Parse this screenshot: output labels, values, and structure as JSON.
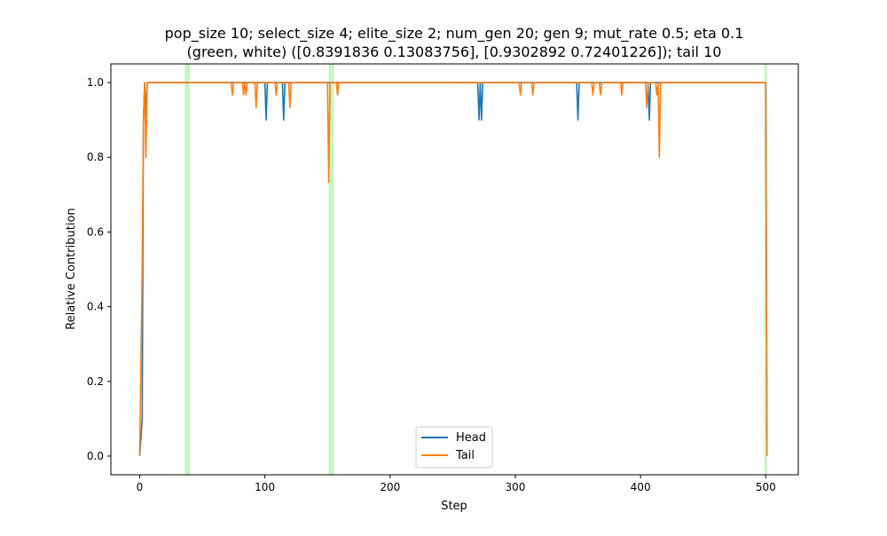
{
  "chart_data": {
    "type": "line",
    "title": "pop_size 10; select_size 4; elite_size 2; num_gen 20; gen 9; mut_rate 0.5; eta 0.1",
    "subtitle": "(green, white) ([0.8391836  0.13083756], [0.9302892  0.72401226]); tail 10",
    "xlabel": "Step",
    "ylabel": "Relative Contribution",
    "xlim": [
      -23,
      526
    ],
    "ylim": [
      -0.05,
      1.05
    ],
    "xticks": [
      0,
      100,
      200,
      300,
      400,
      500
    ],
    "yticks": [
      0.0,
      0.2,
      0.4,
      0.6,
      0.8,
      1.0
    ],
    "xtick_labels": [
      "0",
      "100",
      "200",
      "300",
      "400",
      "500"
    ],
    "ytick_labels": [
      "0.0",
      "0.2",
      "0.4",
      "0.6",
      "0.8",
      "1.0"
    ],
    "grid": false,
    "legend_position": "lower-center",
    "highlight_spans": [
      [
        36,
        40
      ],
      [
        151,
        155
      ],
      [
        499,
        501
      ]
    ],
    "highlight_color": "#90ee90",
    "series": [
      {
        "name": "Head",
        "color": "#1f77b4",
        "baseline": 1.0,
        "x_end": 501,
        "points": [
          [
            0,
            0.0
          ],
          [
            2,
            0.1
          ],
          [
            3,
            0.9
          ],
          [
            4,
            1.0
          ],
          [
            5,
            0.9
          ],
          [
            6,
            1.0
          ],
          [
            100,
            1.0
          ],
          [
            101,
            0.9
          ],
          [
            102,
            1.0
          ],
          [
            114,
            1.0
          ],
          [
            115,
            0.9
          ],
          [
            116,
            1.0
          ],
          [
            270,
            1.0
          ],
          [
            271,
            0.9
          ],
          [
            272,
            1.0
          ],
          [
            273,
            0.9
          ],
          [
            274,
            1.0
          ],
          [
            349,
            1.0
          ],
          [
            350,
            0.9
          ],
          [
            351,
            1.0
          ],
          [
            406,
            1.0
          ],
          [
            407,
            0.9
          ],
          [
            408,
            1.0
          ],
          [
            500,
            1.0
          ],
          [
            501,
            0.0
          ]
        ]
      },
      {
        "name": "Tail",
        "color": "#ff7f0e",
        "baseline": 1.0,
        "x_end": 501,
        "points": [
          [
            0,
            0.0
          ],
          [
            2,
            0.5
          ],
          [
            3,
            0.9
          ],
          [
            4,
            1.0
          ],
          [
            5,
            0.8
          ],
          [
            6,
            1.0
          ],
          [
            73,
            1.0
          ],
          [
            74,
            0.967
          ],
          [
            75,
            1.0
          ],
          [
            82,
            1.0
          ],
          [
            83,
            0.967
          ],
          [
            84,
            1.0
          ],
          [
            85,
            0.967
          ],
          [
            86,
            1.0
          ],
          [
            92,
            1.0
          ],
          [
            93,
            0.933
          ],
          [
            94,
            1.0
          ],
          [
            108,
            1.0
          ],
          [
            109,
            0.967
          ],
          [
            110,
            1.0
          ],
          [
            119,
            1.0
          ],
          [
            120,
            0.933
          ],
          [
            121,
            1.0
          ],
          [
            150,
            1.0
          ],
          [
            151,
            0.733
          ],
          [
            152,
            1.0
          ],
          [
            157,
            1.0
          ],
          [
            158,
            0.967
          ],
          [
            159,
            1.0
          ],
          [
            303,
            1.0
          ],
          [
            304,
            0.967
          ],
          [
            305,
            1.0
          ],
          [
            313,
            1.0
          ],
          [
            314,
            0.967
          ],
          [
            315,
            1.0
          ],
          [
            361,
            1.0
          ],
          [
            362,
            0.967
          ],
          [
            363,
            1.0
          ],
          [
            367,
            1.0
          ],
          [
            368,
            0.967
          ],
          [
            369,
            1.0
          ],
          [
            384,
            1.0
          ],
          [
            385,
            0.967
          ],
          [
            386,
            1.0
          ],
          [
            404,
            1.0
          ],
          [
            405,
            0.933
          ],
          [
            406,
            1.0
          ],
          [
            412,
            1.0
          ],
          [
            413,
            0.967
          ],
          [
            414,
            1.0
          ],
          [
            415,
            0.8
          ],
          [
            416,
            1.0
          ],
          [
            500,
            1.0
          ],
          [
            501,
            0.0
          ]
        ]
      }
    ]
  }
}
